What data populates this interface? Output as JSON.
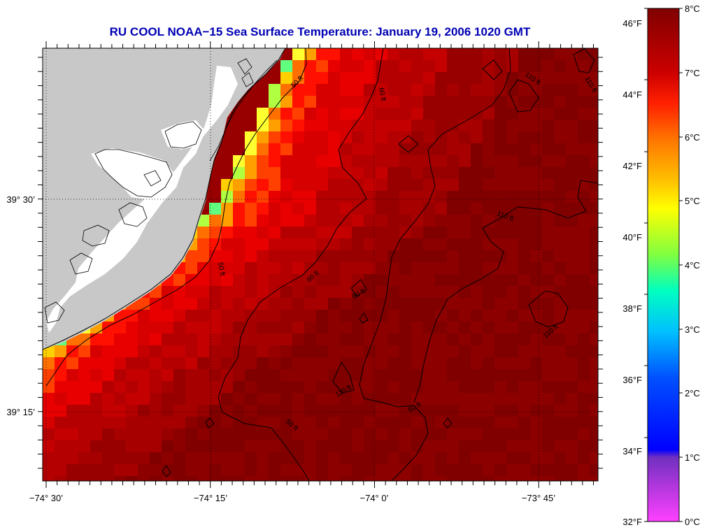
{
  "title": "RU COOL  NOAA−15  Sea Surface Temperature:  January 19, 2006 1020 GMT",
  "map": {
    "lon_labels": [
      "−74° 30’",
      "−74° 15’",
      "−74° 0’",
      "−73° 45’"
    ],
    "lat_labels": [
      "39° 30’",
      "39° 15’"
    ],
    "contour_labels": [
      "50 ft",
      "60 ft",
      "60 ft",
      "60 ft",
      "110 ft",
      "110 ft",
      "110 ft",
      "110 ft",
      "110 ft",
      "60 ft",
      "50 ft"
    ]
  },
  "colorbar": {
    "f_labels": [
      "46°F",
      "44°F",
      "42°F",
      "40°F",
      "38°F",
      "36°F",
      "34°F",
      "32°F"
    ],
    "c_labels": [
      "8°C",
      "7°C",
      "6°C",
      "5°C",
      "4°C",
      "3°C",
      "2°C",
      "1°C",
      "0°C"
    ],
    "range_c": [
      0,
      8
    ],
    "range_f": [
      32,
      46
    ]
  },
  "colors": {
    "land": "#c8c8c8",
    "title": "#0000b4"
  }
}
